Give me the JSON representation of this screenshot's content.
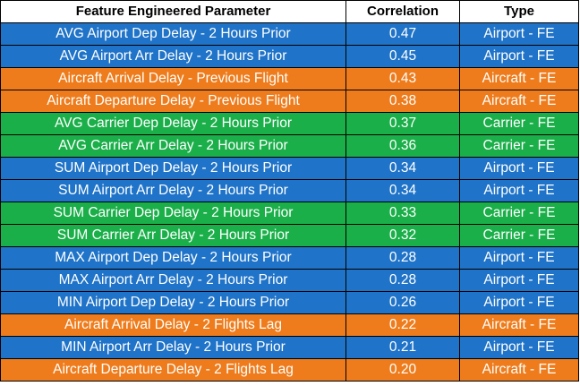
{
  "table": {
    "headers": [
      "Feature Engineered Parameter",
      "Correlation",
      "Type"
    ],
    "category_colors": {
      "Airport - FE": "#1F73C8",
      "Aircraft - FE": "#EE7C1C",
      "Carrier - FE": "#1BAF4A"
    },
    "rows": [
      {
        "parameter": "AVG Airport Dep Delay - 2 Hours Prior",
        "correlation": "0.47",
        "type": "Airport - FE"
      },
      {
        "parameter": "AVG Airport Arr Delay - 2 Hours Prior",
        "correlation": "0.45",
        "type": "Airport - FE"
      },
      {
        "parameter": "Aircraft Arrival Delay - Previous Flight",
        "correlation": "0.43",
        "type": "Aircraft - FE"
      },
      {
        "parameter": "Aircraft Departure Delay - Previous Flight",
        "correlation": "0.38",
        "type": "Aircraft - FE"
      },
      {
        "parameter": "AVG Carrier Dep Delay - 2 Hours Prior",
        "correlation": "0.37",
        "type": "Carrier - FE"
      },
      {
        "parameter": "AVG Carrier Arr Delay - 2 Hours Prior",
        "correlation": "0.36",
        "type": "Carrier - FE"
      },
      {
        "parameter": "SUM Airport Dep Delay - 2 Hours Prior",
        "correlation": "0.34",
        "type": "Airport - FE"
      },
      {
        "parameter": "SUM Airport Arr Delay - 2 Hours Prior",
        "correlation": "0.34",
        "type": "Airport - FE"
      },
      {
        "parameter": "SUM Carrier Dep Delay - 2 Hours Prior",
        "correlation": "0.33",
        "type": "Carrier - FE"
      },
      {
        "parameter": "SUM Carrier Arr Delay - 2 Hours Prior",
        "correlation": "0.32",
        "type": "Carrier - FE"
      },
      {
        "parameter": "MAX Airport Dep Delay - 2 Hours Prior",
        "correlation": "0.28",
        "type": "Airport - FE"
      },
      {
        "parameter": "MAX Airport Arr Delay - 2 Hours Prior",
        "correlation": "0.28",
        "type": "Airport - FE"
      },
      {
        "parameter": "MIN Airport Dep Delay - 2 Hours Prior",
        "correlation": "0.26",
        "type": "Airport - FE"
      },
      {
        "parameter": "Aircraft Arrival Delay - 2 Flights Lag",
        "correlation": "0.22",
        "type": "Aircraft - FE"
      },
      {
        "parameter": "MIN Airport Arr Delay - 2 Hours Prior",
        "correlation": "0.21",
        "type": "Airport - FE"
      },
      {
        "parameter": "Aircraft Departure Delay - 2 Flights Lag",
        "correlation": "0.20",
        "type": "Aircraft - FE"
      }
    ]
  }
}
